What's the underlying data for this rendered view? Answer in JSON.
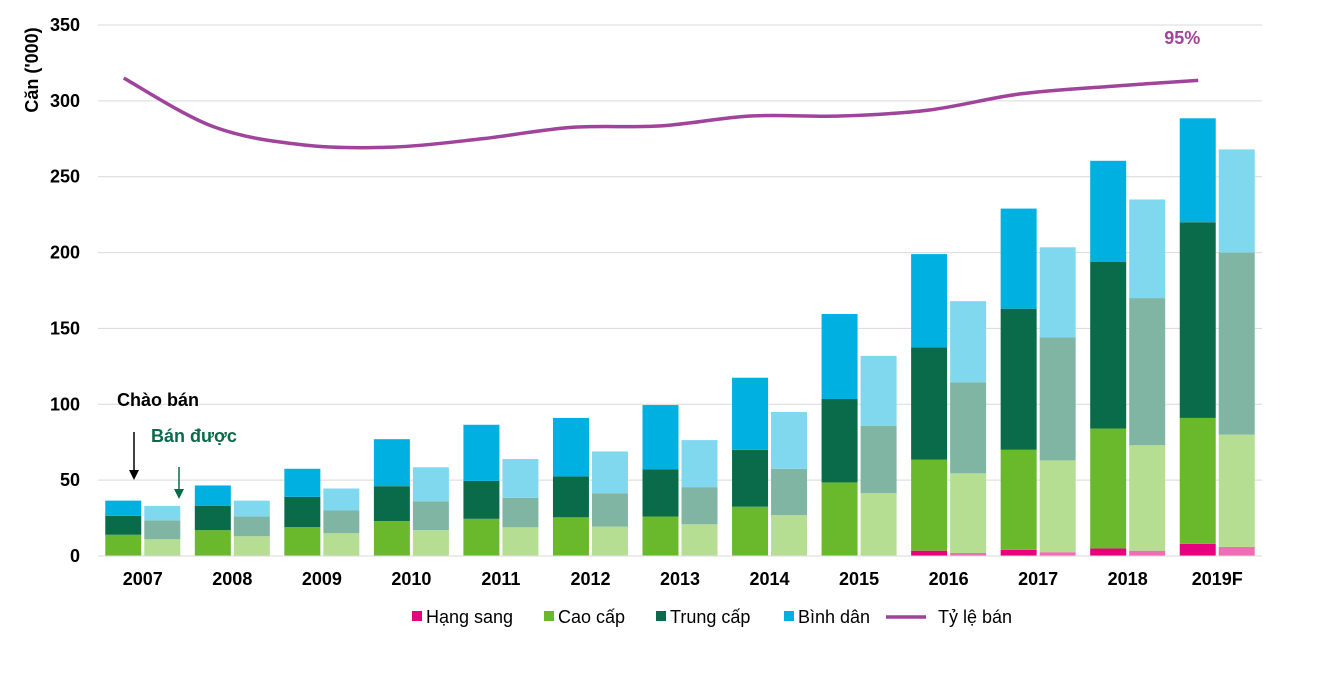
{
  "chart_data": {
    "type": "bar",
    "stacked": true,
    "ylabel": "Căn ('000)",
    "ylim": [
      0,
      350
    ],
    "yticks": [
      0,
      50,
      100,
      150,
      200,
      250,
      300,
      350
    ],
    "grid": true,
    "legend_position": "bottom",
    "categories": [
      "2007",
      "2008",
      "2009",
      "2010",
      "2011",
      "2012",
      "2013",
      "2014",
      "2015",
      "2016",
      "2017",
      "2018",
      "2019F"
    ],
    "bar_groups": [
      "Chào bán",
      "Bán được"
    ],
    "series": [
      {
        "name": "Hạng sang",
        "color": "#e6007e",
        "color_sold": "#f06cb6",
        "offered": [
          0,
          0,
          0,
          0,
          0.5,
          0.5,
          0.5,
          0.5,
          0.5,
          3.5,
          4,
          5,
          8
        ],
        "sold": [
          0,
          0,
          0,
          0,
          0.4,
          0.4,
          0.4,
          0.4,
          0.4,
          2,
          2.5,
          3.5,
          6
        ]
      },
      {
        "name": "Cao cấp",
        "color": "#6ab92d",
        "color_sold": "#b5de92",
        "offered": [
          14,
          17,
          19,
          23,
          24,
          25,
          25.5,
          32,
          48,
          60,
          66,
          79,
          83
        ],
        "sold": [
          11,
          13,
          15,
          17,
          18.5,
          19,
          20.5,
          26.5,
          41,
          52.5,
          60.5,
          69.5,
          74
        ]
      },
      {
        "name": "Trung cấp",
        "color": "#0a6b4a",
        "color_sold": "#80b5a4",
        "offered": [
          12.5,
          16,
          20,
          23,
          25,
          27,
          31,
          37.5,
          55,
          74,
          93,
          110,
          129
        ],
        "sold": [
          12.5,
          13,
          15,
          19,
          19.5,
          22,
          24.5,
          30.5,
          44.5,
          60,
          81,
          97,
          120
        ]
      },
      {
        "name": "Bình dân",
        "color": "#00b0e0",
        "color_sold": "#80d8ef",
        "offered": [
          10,
          13.5,
          18.5,
          31,
          37,
          38.5,
          42.5,
          47.5,
          56,
          61.5,
          66,
          66.5,
          68.5
        ],
        "sold": [
          9.5,
          10.5,
          14.5,
          22.5,
          25.5,
          27.5,
          31,
          37.5,
          46,
          53.5,
          59.5,
          65,
          68
        ]
      }
    ],
    "line": {
      "name": "Tỷ lệ bán",
      "color": "#a0449b",
      "values": [
        315,
        283,
        271,
        269.5,
        275,
        282.5,
        283.5,
        290,
        290,
        294,
        304.5,
        309.5,
        313.5
      ],
      "end_label": "95%"
    }
  }
}
